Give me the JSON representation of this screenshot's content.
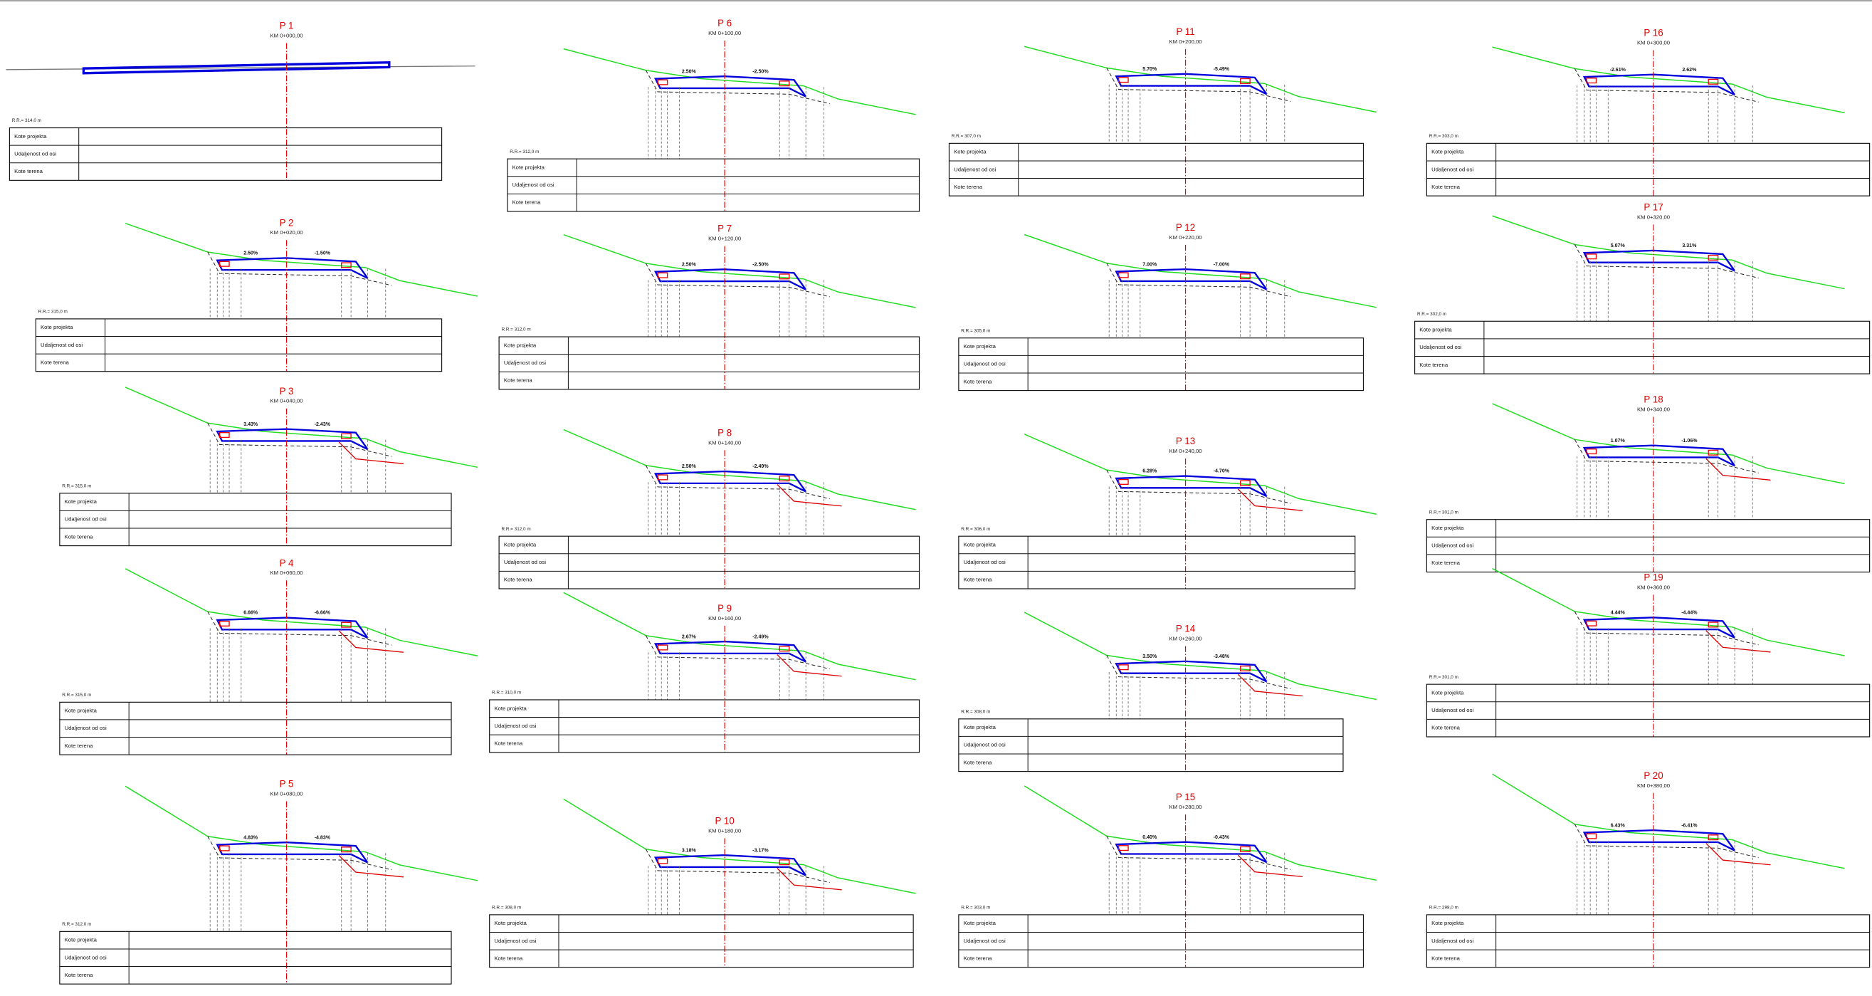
{
  "table_rows": [
    "Kote projekta",
    "Udaljenost od osi",
    "Kote terena"
  ],
  "profiles": [
    {
      "title": "P 1",
      "km": "KM 0+000,00",
      "datum": "R.R.= 314,0 m"
    },
    {
      "title": "P 2",
      "km": "KM 0+020,00",
      "datum": "R.R.= 315,0 m",
      "slopes": [
        "2.50%",
        "-1.50%"
      ]
    },
    {
      "title": "P 3",
      "km": "KM 0+040,00",
      "datum": "R.R.= 315,0 m",
      "slopes": [
        "3.43%",
        "-2.43%"
      ]
    },
    {
      "title": "P 4",
      "km": "KM 0+060,00",
      "datum": "R.R.= 315,0 m",
      "slopes": [
        "6.66%",
        "-6.66%"
      ]
    },
    {
      "title": "P 5",
      "km": "KM 0+080,00",
      "datum": "R.R.= 312,0 m",
      "slopes": [
        "4.83%",
        "-4.83%"
      ]
    },
    {
      "title": "P 6",
      "km": "KM 0+100,00",
      "datum": "R.R.= 312,0 m",
      "slopes": [
        "2.50%",
        "-2.50%"
      ]
    },
    {
      "title": "P 7",
      "km": "KM 0+120,00",
      "datum": "R.R.= 312,0 m",
      "slopes": [
        "2.50%",
        "-2.50%"
      ]
    },
    {
      "title": "P 8",
      "km": "KM 0+140,00",
      "datum": "R.R.= 312,0 m",
      "slopes": [
        "2.50%",
        "-2.49%"
      ]
    },
    {
      "title": "P 9",
      "km": "KM 0+160,00",
      "datum": "R.R.= 310,0 m",
      "slopes": [
        "2.67%",
        "-2.49%"
      ]
    },
    {
      "title": "P 10",
      "km": "KM 0+180,00",
      "datum": "R.R.= 308,0 m",
      "slopes": [
        "3.18%",
        "-3.17%"
      ]
    },
    {
      "title": "P 11",
      "km": "KM 0+200,00",
      "datum": "R.R.= 307,0 m",
      "slopes": [
        "5.70%",
        "-5.49%"
      ]
    },
    {
      "title": "P 12",
      "km": "KM 0+220,00",
      "datum": "R.R.= 305,0 m",
      "slopes": [
        "7.00%",
        "-7.00%"
      ]
    },
    {
      "title": "P 13",
      "km": "KM 0+240,00",
      "datum": "R.R.= 306,0 m",
      "slopes": [
        "6.28%",
        "-4.70%"
      ]
    },
    {
      "title": "P 14",
      "km": "KM 0+260,00",
      "datum": "R.R.= 308,0 m",
      "slopes": [
        "3.50%",
        "-3.48%"
      ]
    },
    {
      "title": "P 15",
      "km": "KM 0+280,00",
      "datum": "R.R.= 303,0 m",
      "slopes": [
        "0.40%",
        "-0.43%"
      ]
    },
    {
      "title": "P 16",
      "km": "KM 0+300,00",
      "datum": "R.R.= 303,0 m",
      "slopes": [
        "-2.61%",
        "2.62%"
      ]
    },
    {
      "title": "P 17",
      "km": "KM 0+320,00",
      "datum": "R.R.= 302,0 m",
      "slopes": [
        "5.07%",
        "3.31%"
      ]
    },
    {
      "title": "P 18",
      "km": "KM 0+340,00",
      "datum": "R.R.= 301,0 m",
      "slopes": [
        "1.07%",
        "-1.06%"
      ]
    },
    {
      "title": "P 19",
      "km": "KM 0+360,00",
      "datum": "R.R.= 301,0 m",
      "slopes": [
        "4.44%",
        "-4.44%"
      ]
    },
    {
      "title": "P 20",
      "km": "KM 0+380,00",
      "datum": "R.R.= 298,0 m",
      "slopes": [
        "6.43%",
        "-6.41%"
      ]
    }
  ]
}
